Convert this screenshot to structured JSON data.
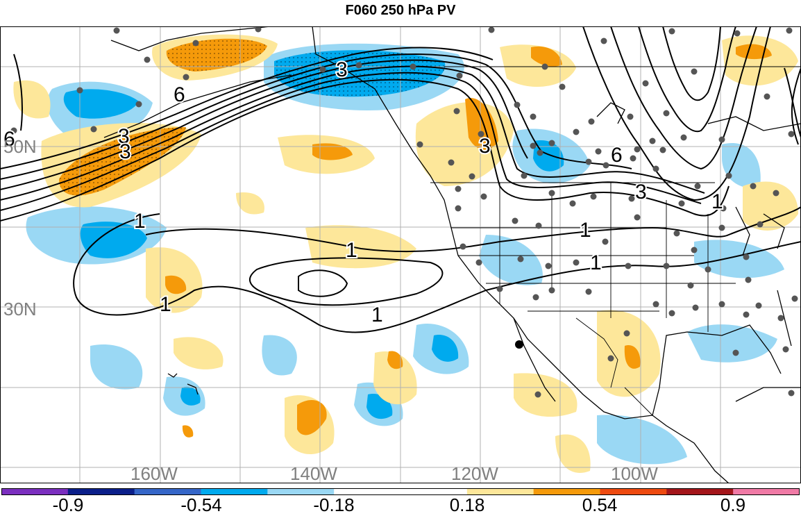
{
  "title": "F060 250 hPa PV",
  "map": {
    "lat_labels": [
      "50N",
      "30N"
    ],
    "lon_labels": [
      "160W",
      "140W",
      "120W",
      "100W"
    ],
    "contour_labels": [
      "3",
      "6",
      "3",
      "1",
      "3",
      "1",
      "1",
      "1",
      "1",
      "1",
      "3",
      "6",
      "3",
      "1",
      "6"
    ]
  },
  "colorbar": {
    "labels": [
      "-0.9",
      "-0.54",
      "-0.18",
      "0.18",
      "0.54",
      "0.9"
    ],
    "colors": [
      "#7b2fbf",
      "#0b1f8a",
      "#3566c8",
      "#00aaee",
      "#9ad8f4",
      "#ffffff",
      "#ffffff",
      "#fde79a",
      "#f59a0a",
      "#ee4a10",
      "#a4161b",
      "#f07aa6"
    ]
  }
}
